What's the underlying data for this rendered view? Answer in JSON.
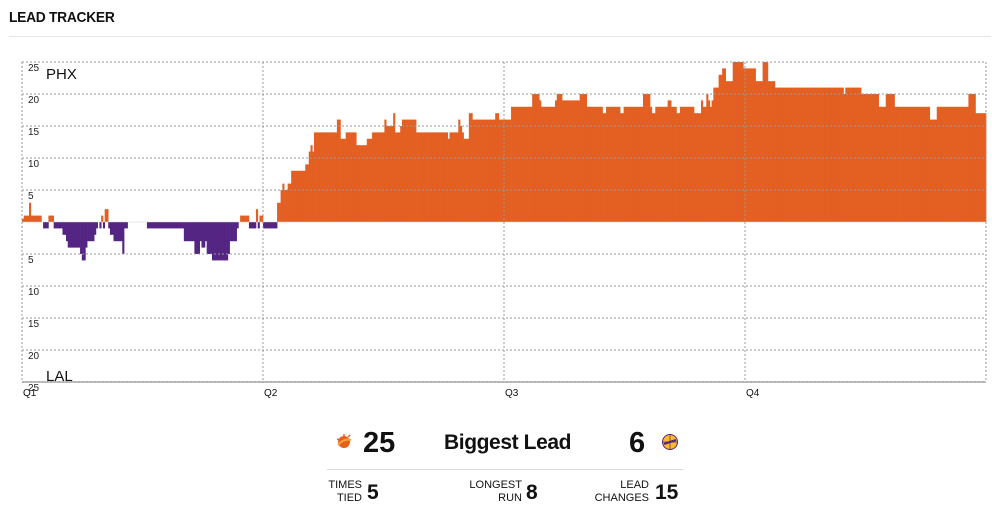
{
  "header": {
    "title": "LEAD TRACKER"
  },
  "colors": {
    "home": "#e35f22",
    "away": "#552583",
    "grid": "#9a9a9a"
  },
  "chart_data": {
    "type": "bar",
    "title": "LEAD TRACKER",
    "y_ticks": [
      25,
      20,
      15,
      10,
      5
    ],
    "ylim": [
      -25,
      25
    ],
    "team_top": "PHX",
    "team_bottom": "LAL",
    "quarters": [
      "Q1",
      "Q2",
      "Q3",
      "Q4"
    ],
    "periods": 4,
    "grid": true,
    "series": [
      {
        "name": "PHX",
        "values": [
          0.5,
          1,
          1,
          1,
          3,
          1,
          1,
          1,
          1,
          1,
          1,
          0,
          -1,
          -1,
          -1,
          1,
          1,
          1,
          -1,
          -1,
          -1,
          -1,
          -1,
          -2,
          -2,
          -3,
          -4,
          -4,
          -4,
          -4,
          -4,
          -4,
          -4,
          -5,
          -6,
          -6,
          -4,
          -3,
          -3,
          -3,
          -3,
          -2,
          -1,
          0,
          -1,
          1,
          -1,
          2,
          2,
          -1,
          -2,
          -2,
          -3,
          -3,
          -3,
          -3,
          -3,
          -5,
          -1,
          -1,
          0,
          0,
          0,
          0,
          0,
          0,
          0,
          0,
          0,
          0,
          0,
          -1,
          -1,
          -1,
          -1,
          -1,
          -1,
          -1,
          -1,
          -1,
          -1,
          -1,
          -1,
          -1,
          -1,
          -1,
          -1,
          -1,
          -1,
          -1,
          -1,
          -1,
          -3,
          -3,
          -3,
          -3,
          -3,
          -3,
          -5,
          -5,
          -5,
          -3,
          -4,
          -4,
          -3,
          -5,
          -5,
          -5,
          -6,
          -6,
          -6,
          -6,
          -6,
          -6,
          -6,
          -6,
          -6,
          -5,
          -3,
          -3,
          -3,
          -3,
          -1,
          0,
          1,
          1,
          1,
          1,
          1,
          -1,
          -1,
          -1,
          -1,
          2,
          -1,
          1,
          1,
          -1,
          -1,
          -1,
          -1,
          -1,
          -1,
          -1,
          -1,
          3,
          3,
          5,
          6,
          5,
          5,
          6,
          6,
          8,
          8,
          8,
          8,
          8,
          8,
          8,
          8,
          9,
          9,
          11,
          12,
          11,
          14,
          14,
          14,
          14,
          14,
          14,
          14,
          14,
          14,
          14,
          14,
          14,
          14,
          16,
          16,
          13,
          13,
          13,
          14,
          14,
          14,
          14,
          14,
          14,
          12,
          12,
          12,
          12,
          12,
          12,
          13,
          13,
          13,
          14,
          14,
          14,
          14,
          14,
          14,
          14,
          16,
          15,
          15,
          15,
          15,
          17,
          14,
          14,
          14,
          15,
          16,
          16,
          16,
          16,
          16,
          16,
          16,
          16,
          14,
          14,
          14,
          14,
          14,
          14,
          14,
          14,
          14,
          14,
          14,
          14,
          14,
          14,
          14,
          14,
          14,
          14,
          13,
          14,
          14,
          14,
          14,
          14,
          16,
          15,
          14,
          13,
          13,
          13,
          17,
          17,
          16,
          16,
          16,
          16,
          16,
          16,
          16,
          16,
          16,
          16,
          16,
          16,
          16,
          17,
          17,
          16,
          16,
          16,
          16,
          16,
          16,
          16,
          18,
          18,
          18,
          18,
          18,
          18,
          18,
          18,
          18,
          18,
          18,
          18,
          20,
          20,
          20,
          20,
          19,
          18,
          18,
          18,
          18,
          18,
          18,
          18,
          18,
          19,
          20,
          20,
          20,
          19,
          19,
          19,
          19,
          19,
          19,
          19,
          19,
          19,
          19,
          20,
          20,
          20,
          20,
          18,
          18,
          18,
          18,
          18,
          18,
          18,
          18,
          18,
          17,
          17,
          18,
          18,
          18,
          18,
          18,
          18,
          18,
          18,
          17,
          17,
          18,
          18,
          18,
          18,
          18,
          18,
          18,
          18,
          18,
          18,
          18,
          20,
          20,
          20,
          20,
          18,
          17,
          17,
          18,
          18,
          18,
          18,
          18,
          18,
          18,
          19,
          19,
          18,
          18,
          18,
          17,
          17,
          18,
          18,
          18,
          18,
          18,
          18,
          18,
          18,
          17,
          17,
          17,
          17,
          19,
          18,
          18,
          20,
          19,
          18,
          19,
          21,
          21,
          21,
          23,
          23,
          24,
          24,
          22,
          22,
          22,
          22,
          25,
          25,
          25,
          25,
          25,
          25,
          24,
          24,
          24,
          24,
          24,
          24,
          24,
          22,
          22,
          22,
          22,
          25,
          25,
          25,
          22,
          22,
          22,
          22,
          21,
          21,
          21,
          21,
          21,
          21,
          21,
          21,
          21,
          21,
          21,
          21,
          21,
          21,
          21,
          21,
          21,
          21,
          21,
          21,
          21,
          21,
          21,
          21,
          21,
          21,
          21,
          21,
          21,
          21,
          21,
          21,
          21,
          21,
          21,
          21,
          21,
          21,
          21,
          20,
          21,
          21,
          21,
          21,
          21,
          21,
          21,
          21,
          21,
          20,
          20,
          20,
          20,
          20,
          20,
          20,
          20,
          20,
          20,
          18,
          18,
          18,
          18,
          20,
          20,
          20,
          20,
          20,
          18,
          18,
          18,
          18,
          18,
          18,
          18,
          18,
          18,
          18,
          18,
          18,
          18,
          18,
          18,
          18,
          18,
          18,
          18,
          18,
          16,
          16,
          16,
          16,
          18,
          18,
          18,
          18,
          18,
          18,
          18,
          18,
          18,
          18,
          18,
          18,
          18,
          18,
          18,
          18,
          18,
          18,
          20,
          20,
          20,
          20,
          17,
          17,
          17,
          17,
          17,
          17
        ]
      }
    ],
    "summary": {
      "biggest_lead_label": "Biggest Lead",
      "home_biggest_lead": "25",
      "away_biggest_lead": "6",
      "times_tied_label": "TIMES\nTIED",
      "times_tied": "5",
      "longest_run_label": "LONGEST\nRUN",
      "longest_run": "8",
      "lead_changes_label": "LEAD\nCHANGES",
      "lead_changes": "15"
    }
  },
  "logos": {
    "home": "suns-logo-icon",
    "away": "lakers-logo-icon"
  }
}
